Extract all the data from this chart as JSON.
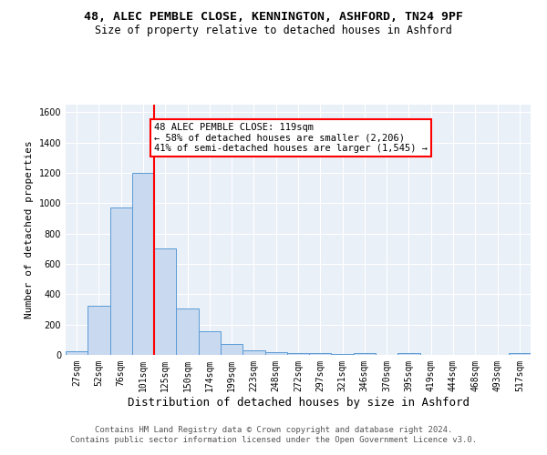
{
  "title1": "48, ALEC PEMBLE CLOSE, KENNINGTON, ASHFORD, TN24 9PF",
  "title2": "Size of property relative to detached houses in Ashford",
  "xlabel": "Distribution of detached houses by size in Ashford",
  "ylabel": "Number of detached properties",
  "bar_labels": [
    "27sqm",
    "52sqm",
    "76sqm",
    "101sqm",
    "125sqm",
    "150sqm",
    "174sqm",
    "199sqm",
    "223sqm",
    "248sqm",
    "272sqm",
    "297sqm",
    "321sqm",
    "346sqm",
    "370sqm",
    "395sqm",
    "419sqm",
    "444sqm",
    "468sqm",
    "493sqm",
    "517sqm"
  ],
  "bar_values": [
    25,
    325,
    970,
    1200,
    700,
    305,
    155,
    75,
    30,
    20,
    12,
    10,
    5,
    12,
    0,
    15,
    0,
    0,
    0,
    0,
    12
  ],
  "bar_color": "#c8d9f0",
  "bar_edge_color": "#5b9bd5",
  "vline_color": "red",
  "annotation_text": "48 ALEC PEMBLE CLOSE: 119sqm\n← 58% of detached houses are smaller (2,206)\n41% of semi-detached houses are larger (1,545) →",
  "annotation_box_color": "white",
  "annotation_box_edge": "red",
  "ylim": [
    0,
    1650
  ],
  "yticks": [
    0,
    200,
    400,
    600,
    800,
    1000,
    1200,
    1400,
    1600
  ],
  "bg_color": "#eaf0f8",
  "footer1": "Contains HM Land Registry data © Crown copyright and database right 2024.",
  "footer2": "Contains public sector information licensed under the Open Government Licence v3.0.",
  "title1_fontsize": 9.5,
  "title2_fontsize": 8.5,
  "xlabel_fontsize": 9,
  "ylabel_fontsize": 8,
  "tick_fontsize": 7,
  "annotation_fontsize": 7.5,
  "footer_fontsize": 6.5
}
